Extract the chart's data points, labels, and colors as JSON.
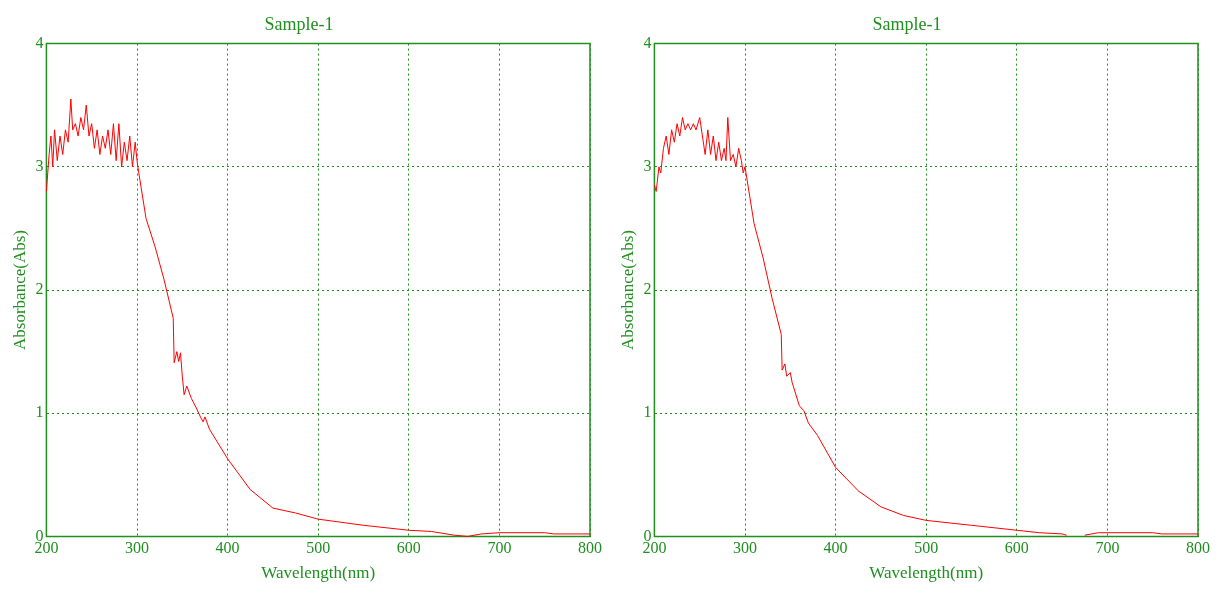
{
  "chart_data": [
    {
      "type": "line",
      "title": "Sample-1",
      "xlabel": "Wavelength(nm)",
      "ylabel": "Absorbance(Abs)",
      "xlim": [
        200,
        800
      ],
      "xticks": [
        200,
        300,
        400,
        500,
        600,
        700,
        800
      ],
      "ylim": [
        0,
        4
      ],
      "yticks": [
        0,
        1,
        2,
        3,
        4
      ],
      "grid": true,
      "legend": false,
      "marker": "none",
      "line_style": "solid",
      "x": [
        200,
        203,
        205,
        207,
        209,
        212,
        215,
        218,
        221,
        224,
        227,
        229,
        232,
        235,
        238,
        241,
        244,
        247,
        250,
        253,
        256,
        259,
        262,
        265,
        268,
        271,
        274,
        277,
        280,
        283,
        286,
        289,
        292,
        295,
        298,
        300,
        302,
        310,
        320,
        330,
        340,
        341,
        344,
        346,
        348,
        350,
        352,
        355,
        360,
        365,
        370,
        373,
        375,
        380,
        400,
        425,
        450,
        475,
        500,
        550,
        600,
        625,
        650,
        665,
        680,
        700,
        750,
        760,
        800
      ],
      "series": [
        {
          "color": "#ff0000",
          "values": [
            2.8,
            3.1,
            3.25,
            3.0,
            3.3,
            3.05,
            3.25,
            3.1,
            3.3,
            3.2,
            3.55,
            3.3,
            3.35,
            3.25,
            3.4,
            3.3,
            3.5,
            3.25,
            3.35,
            3.15,
            3.3,
            3.1,
            3.25,
            3.15,
            3.3,
            3.1,
            3.35,
            3.05,
            3.35,
            3.0,
            3.2,
            3.05,
            3.25,
            3.0,
            3.2,
            3.05,
            2.95,
            2.58,
            2.35,
            2.08,
            1.77,
            1.41,
            1.5,
            1.42,
            1.49,
            1.3,
            1.15,
            1.22,
            1.12,
            1.05,
            0.97,
            0.93,
            0.97,
            0.87,
            0.63,
            0.38,
            0.23,
            0.19,
            0.14,
            0.09,
            0.05,
            0.04,
            0.01,
            0.0,
            0.02,
            0.03,
            0.03,
            0.02,
            0.02
          ]
        }
      ]
    },
    {
      "type": "line",
      "title": "Sample-1",
      "xlabel": "Wavelength(nm)",
      "ylabel": "Absorbance(Abs)",
      "xlim": [
        200,
        800
      ],
      "xticks": [
        200,
        300,
        400,
        500,
        600,
        700,
        800
      ],
      "ylim": [
        0,
        4
      ],
      "yticks": [
        0,
        1,
        2,
        3,
        4
      ],
      "grid": true,
      "legend": false,
      "marker": "none",
      "line_style": "solid",
      "x": [
        200,
        202,
        205,
        207,
        210,
        213,
        216,
        219,
        222,
        225,
        228,
        231,
        234,
        237,
        240,
        243,
        246,
        250,
        253,
        256,
        259,
        262,
        265,
        268,
        271,
        274,
        277,
        279,
        281,
        284,
        287,
        290,
        293,
        296,
        298,
        300,
        310,
        320,
        330,
        340,
        341,
        344,
        346,
        350,
        352,
        360,
        365,
        370,
        380,
        400,
        425,
        450,
        475,
        500,
        550,
        600,
        625,
        650,
        655,
        665,
        675,
        690,
        750,
        760,
        800
      ],
      "series": [
        {
          "color": "#ff0000",
          "values": [
            2.85,
            2.8,
            3.0,
            2.95,
            3.15,
            3.25,
            3.1,
            3.3,
            3.2,
            3.35,
            3.25,
            3.4,
            3.3,
            3.35,
            3.3,
            3.35,
            3.3,
            3.4,
            3.25,
            3.1,
            3.3,
            3.1,
            3.25,
            3.05,
            3.2,
            3.05,
            3.15,
            3.05,
            3.4,
            3.05,
            3.1,
            3.0,
            3.15,
            3.05,
            2.95,
            3.0,
            2.54,
            2.26,
            1.93,
            1.64,
            1.35,
            1.4,
            1.3,
            1.33,
            1.25,
            1.06,
            1.02,
            0.92,
            0.82,
            0.56,
            0.37,
            0.24,
            0.17,
            0.13,
            0.09,
            0.05,
            0.03,
            0.02,
            0.01,
            null,
            0.01,
            0.03,
            0.03,
            0.02,
            0.02
          ]
        }
      ]
    }
  ]
}
